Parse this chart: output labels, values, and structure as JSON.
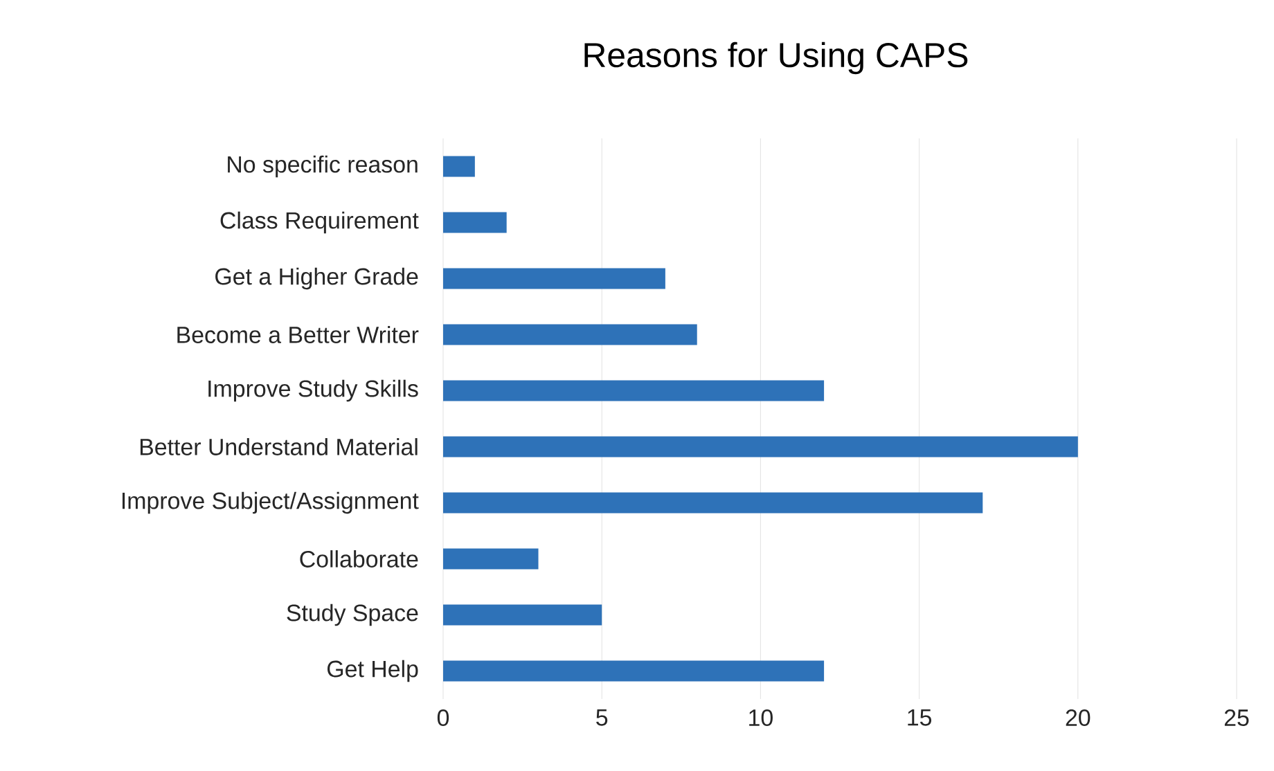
{
  "chart_data": {
    "type": "bar",
    "orientation": "horizontal",
    "title": "Reasons for Using CAPS",
    "categories": [
      "No specific reason",
      "Class Requirement",
      "Get a Higher Grade",
      "Become a Better Writer",
      "Improve Study Skills",
      "Better Understand Material",
      "Improve Subject/Assignment",
      "Collaborate",
      "Study Space",
      "Get Help"
    ],
    "values": [
      1,
      2,
      7,
      8,
      12,
      20,
      17,
      3,
      5,
      12
    ],
    "color": "#2e72b8",
    "xlim": [
      0,
      25
    ],
    "xticks": [
      0,
      5,
      10,
      15,
      20,
      25
    ],
    "grid": "x"
  }
}
